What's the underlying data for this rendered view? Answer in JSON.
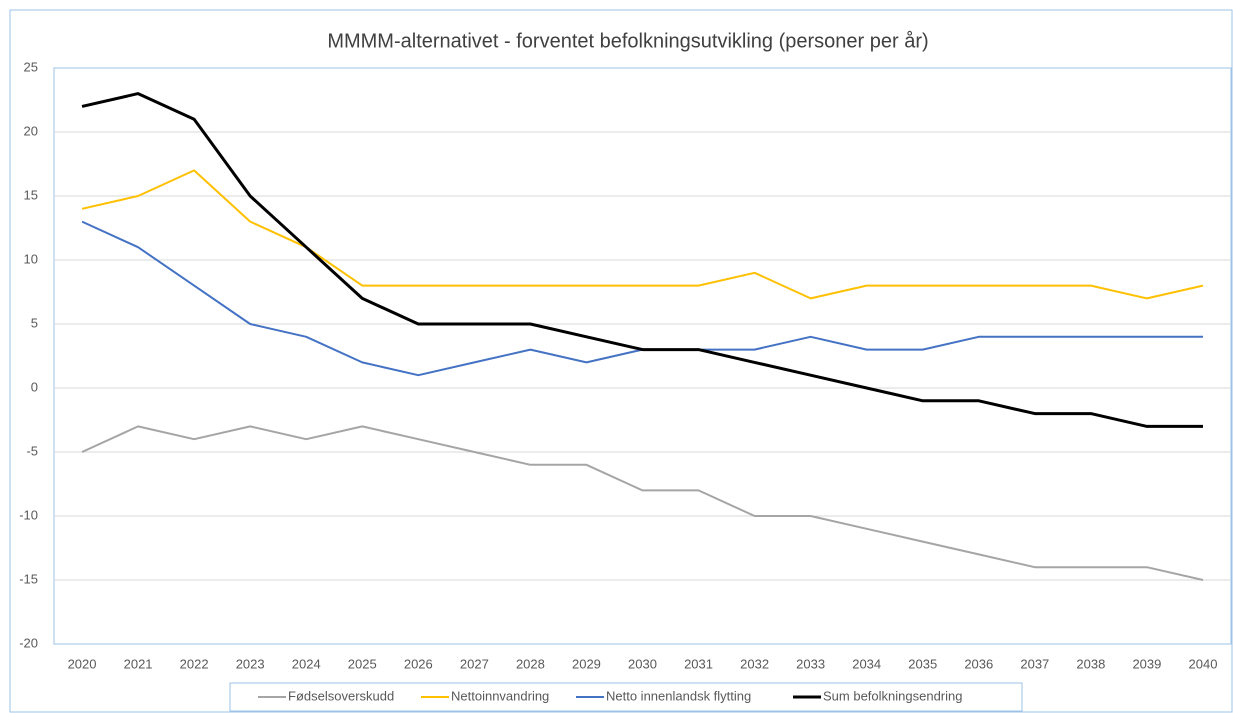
{
  "chart_data": {
    "type": "line",
    "title": "MMMM-alternativet - forventet befolkningsutvikling (personer per år)",
    "categories": [
      "2020",
      "2021",
      "2022",
      "2023",
      "2024",
      "2025",
      "2026",
      "2027",
      "2028",
      "2029",
      "2030",
      "2031",
      "2032",
      "2033",
      "2034",
      "2035",
      "2036",
      "2037",
      "2038",
      "2039",
      "2040"
    ],
    "series": [
      {
        "name": "Fødselsoverskudd",
        "color": "#a5a5a5",
        "values": [
          -5,
          -3,
          -4,
          -3,
          -4,
          -3,
          -4,
          -5,
          -6,
          -6,
          -8,
          -8,
          -10,
          -10,
          -11,
          -12,
          -13,
          -14,
          -14,
          -14,
          -15
        ]
      },
      {
        "name": "Nettoinnvandring",
        "color": "#ffc000",
        "values": [
          14,
          15,
          17,
          13,
          11,
          8,
          8,
          8,
          8,
          8,
          8,
          8,
          9,
          7,
          8,
          8,
          8,
          8,
          8,
          7,
          8
        ]
      },
      {
        "name": "Netto innenlandsk flytting",
        "color": "#4472c4",
        "values": [
          13,
          11,
          8,
          5,
          4,
          2,
          1,
          2,
          3,
          2,
          3,
          3,
          3,
          4,
          3,
          3,
          4,
          4,
          4,
          4,
          4
        ]
      },
      {
        "name": "Sum befolkningsendring",
        "color": "#000000",
        "values": [
          22,
          23,
          21,
          15,
          11,
          7,
          5,
          5,
          5,
          4,
          3,
          3,
          2,
          1,
          0,
          -1,
          -1,
          -2,
          -2,
          -3,
          -3
        ]
      }
    ],
    "ylim": [
      -20,
      25
    ],
    "yticks": [
      -20,
      -15,
      -10,
      -5,
      0,
      5,
      10,
      15,
      20,
      25
    ],
    "grid": true,
    "legend": "bottom"
  }
}
